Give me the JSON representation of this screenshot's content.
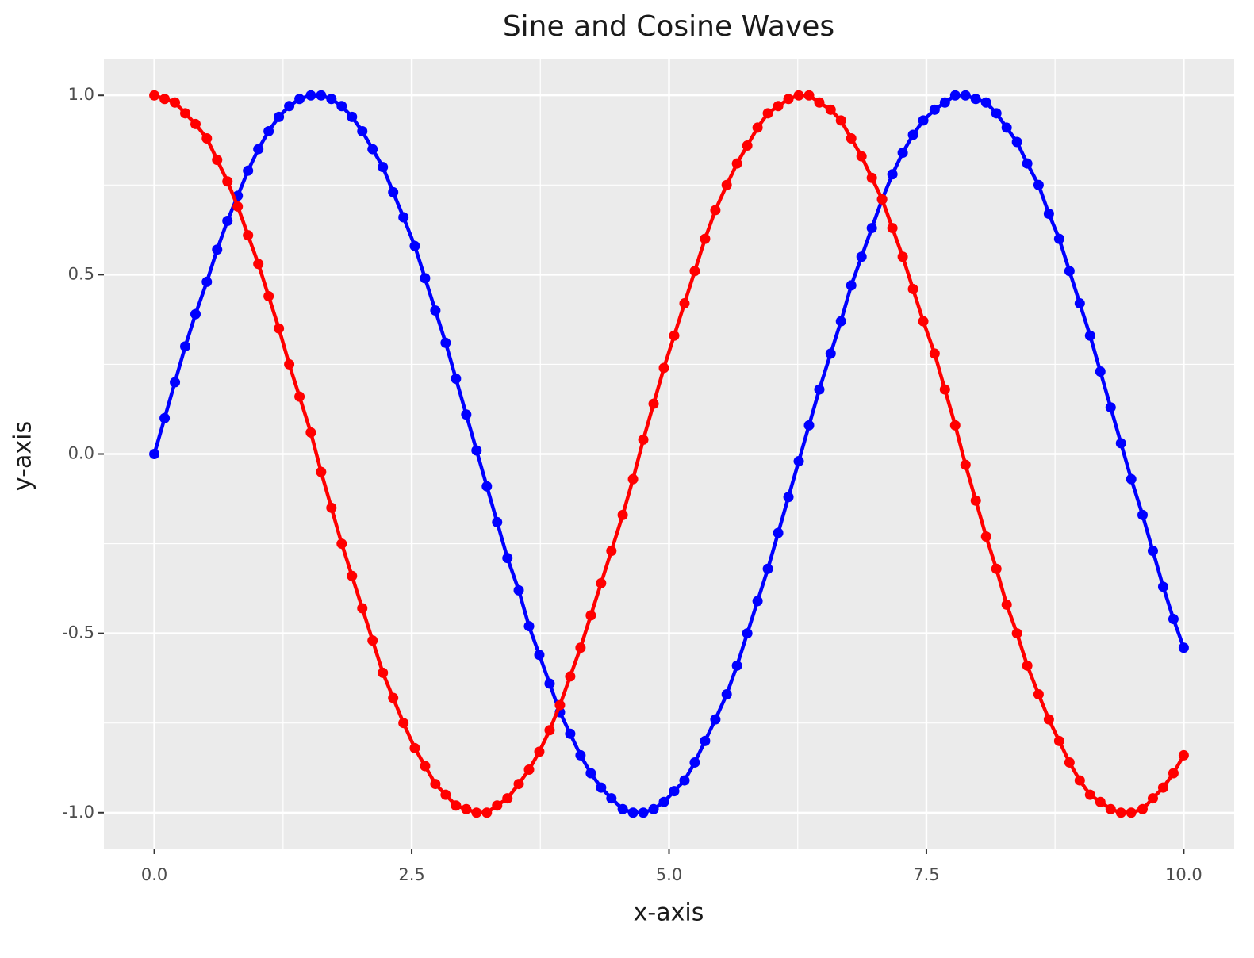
{
  "chart_data": {
    "type": "line",
    "title": "Sine and Cosine Waves",
    "x_label": "x-axis",
    "y_label": "y-axis",
    "x": [
      0,
      0.1,
      0.2,
      0.3,
      0.4,
      0.51,
      0.61,
      0.71,
      0.81,
      0.91,
      1.01,
      1.11,
      1.21,
      1.31,
      1.41,
      1.52,
      1.62,
      1.72,
      1.82,
      1.92,
      2.02,
      2.12,
      2.22,
      2.32,
      2.42,
      2.53,
      2.63,
      2.73,
      2.83,
      2.93,
      3.03,
      3.13,
      3.23,
      3.33,
      3.43,
      3.54,
      3.64,
      3.74,
      3.84,
      3.94,
      4.04,
      4.14,
      4.24,
      4.34,
      4.44,
      4.55,
      4.65,
      4.75,
      4.85,
      4.95,
      5.05,
      5.15,
      5.25,
      5.35,
      5.45,
      5.56,
      5.66,
      5.76,
      5.86,
      5.96,
      6.06,
      6.16,
      6.26,
      6.36,
      6.46,
      6.57,
      6.67,
      6.77,
      6.87,
      6.97,
      7.07,
      7.17,
      7.27,
      7.37,
      7.47,
      7.58,
      7.68,
      7.78,
      7.88,
      7.98,
      8.08,
      8.18,
      8.28,
      8.38,
      8.48,
      8.59,
      8.69,
      8.79,
      8.89,
      8.99,
      9.09,
      9.19,
      9.29,
      9.39,
      9.49,
      9.6,
      9.7,
      9.8,
      9.9,
      10
    ],
    "series": [
      {
        "color": "#0000ff",
        "values": [
          0,
          0.1,
          0.2,
          0.3,
          0.39,
          0.48,
          0.57,
          0.65,
          0.72,
          0.79,
          0.85,
          0.9,
          0.94,
          0.97,
          0.99,
          1.0,
          1.0,
          0.99,
          0.97,
          0.94,
          0.9,
          0.85,
          0.8,
          0.73,
          0.66,
          0.58,
          0.49,
          0.4,
          0.31,
          0.21,
          0.11,
          0.01,
          -0.09,
          -0.19,
          -0.29,
          -0.38,
          -0.48,
          -0.56,
          -0.64,
          -0.72,
          -0.78,
          -0.84,
          -0.89,
          -0.93,
          -0.96,
          -0.99,
          -1.0,
          -1.0,
          -0.99,
          -0.97,
          -0.94,
          -0.91,
          -0.86,
          -0.8,
          -0.74,
          -0.67,
          -0.59,
          -0.5,
          -0.41,
          -0.32,
          -0.22,
          -0.12,
          -0.02,
          0.08,
          0.18,
          0.28,
          0.37,
          0.47,
          0.55,
          0.63,
          0.71,
          0.78,
          0.84,
          0.89,
          0.93,
          0.96,
          0.98,
          1.0,
          1.0,
          0.99,
          0.98,
          0.95,
          0.91,
          0.87,
          0.81,
          0.75,
          0.67,
          0.6,
          0.51,
          0.42,
          0.33,
          0.23,
          0.13,
          0.03,
          -0.07,
          -0.17,
          -0.27,
          -0.37,
          -0.46,
          -0.54
        ]
      },
      {
        "color": "#ff0000",
        "values": [
          1.0,
          0.99,
          0.98,
          0.95,
          0.92,
          0.88,
          0.82,
          0.76,
          0.69,
          0.61,
          0.53,
          0.44,
          0.35,
          0.25,
          0.16,
          0.06,
          -0.05,
          -0.15,
          -0.25,
          -0.34,
          -0.43,
          -0.52,
          -0.61,
          -0.68,
          -0.75,
          -0.82,
          -0.87,
          -0.92,
          -0.95,
          -0.98,
          -0.99,
          -1.0,
          -1.0,
          -0.98,
          -0.96,
          -0.92,
          -0.88,
          -0.83,
          -0.77,
          -0.7,
          -0.62,
          -0.54,
          -0.45,
          -0.36,
          -0.27,
          -0.17,
          -0.07,
          0.04,
          0.14,
          0.24,
          0.33,
          0.42,
          0.51,
          0.6,
          0.68,
          0.75,
          0.81,
          0.86,
          0.91,
          0.95,
          0.97,
          0.99,
          1.0,
          1.0,
          0.98,
          0.96,
          0.93,
          0.88,
          0.83,
          0.77,
          0.71,
          0.63,
          0.55,
          0.46,
          0.37,
          0.28,
          0.18,
          0.08,
          -0.03,
          -0.13,
          -0.23,
          -0.32,
          -0.42,
          -0.5,
          -0.59,
          -0.67,
          -0.74,
          -0.8,
          -0.86,
          -0.91,
          -0.95,
          -0.97,
          -0.99,
          -1.0,
          -1.0,
          -0.99,
          -0.96,
          -0.93,
          -0.89,
          -0.84
        ]
      }
    ],
    "xlim": [
      -0.49,
      10.49
    ],
    "ylim": [
      -1.1,
      1.1
    ],
    "xticks": [
      {
        "value": 0,
        "label": "0.0"
      },
      {
        "value": 2.5,
        "label": "2.5"
      },
      {
        "value": 5,
        "label": "5.0"
      },
      {
        "value": 7.5,
        "label": "7.5"
      },
      {
        "value": 10,
        "label": "10.0"
      }
    ],
    "yticks": [
      {
        "value": -1,
        "label": "-1.0"
      },
      {
        "value": -0.5,
        "label": "-0.5"
      },
      {
        "value": 0,
        "label": "0.0"
      },
      {
        "value": 0.5,
        "label": "0.5"
      },
      {
        "value": 1,
        "label": "1.0"
      }
    ],
    "grid": true,
    "markers": true
  }
}
